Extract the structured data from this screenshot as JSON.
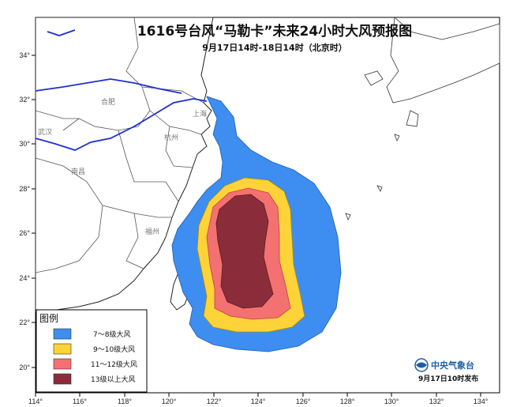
{
  "map": {
    "title": "1616号台风“马勒卡”未来24小时大风预报图",
    "subtitle": "9月17日14时-18日14时（北京时）",
    "lon_ticks": [
      "114°",
      "116°",
      "118°",
      "120°",
      "122°",
      "124°",
      "126°",
      "128°",
      "130°",
      "132°",
      "134°"
    ],
    "lat_ticks": [
      "34°",
      "32°",
      "30°",
      "28°",
      "26°",
      "24°",
      "22°",
      "20°"
    ],
    "cities": [
      "合肥",
      "上海",
      "杭州",
      "南昌",
      "福州",
      "武汉"
    ],
    "legend": {
      "title": "图例",
      "items": [
        {
          "label": "7～8级大风",
          "color": "#3d8ef0"
        },
        {
          "label": "9～10级大风",
          "color": "#fdd339"
        },
        {
          "label": "11～12级大风",
          "color": "#f47171"
        },
        {
          "label": "13级以上大风",
          "color": "#8b2c3a"
        }
      ]
    },
    "agency": "中央气象台",
    "issued": "9月17日10时发布",
    "colors": {
      "river": "#1f2fd1",
      "border": "#555555",
      "coast": "#222222"
    }
  }
}
